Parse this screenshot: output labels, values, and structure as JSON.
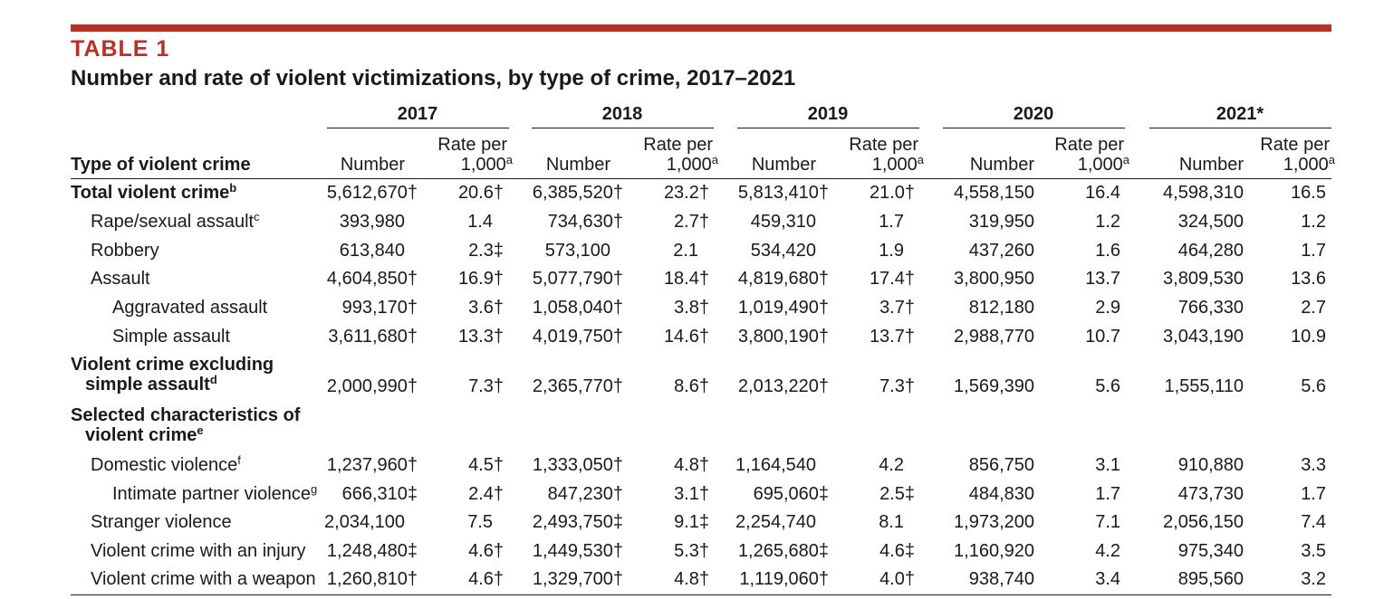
{
  "header": {
    "label": "TABLE 1",
    "title": "Number and rate of violent victimizations, by type of crime, 2017–2021"
  },
  "columns": {
    "type_header": "Type of violent crime",
    "number_label": "Number",
    "rate_label_line1": "Rate per",
    "rate_label_line2": "1,000",
    "rate_footnote": "a",
    "years": [
      "2017",
      "2018",
      "2019",
      "2020",
      "2021*"
    ]
  },
  "rows": [
    {
      "label": "Total violent crime",
      "note": "b",
      "bold": true,
      "values": [
        [
          "5,612,670†",
          "20.6†"
        ],
        [
          "6,385,520†",
          "23.2†"
        ],
        [
          "5,813,410†",
          "21.0†"
        ],
        [
          "4,558,150",
          "16.4"
        ],
        [
          "4,598,310",
          "16.5"
        ]
      ]
    },
    {
      "label": "Rape/sexual assault",
      "note": "c",
      "values": [
        [
          "393,980",
          "1.4"
        ],
        [
          "734,630†",
          "2.7†"
        ],
        [
          "459,310",
          "1.7"
        ],
        [
          "319,950",
          "1.2"
        ],
        [
          "324,500",
          "1.2"
        ]
      ]
    },
    {
      "label": "Robbery",
      "note": "",
      "values": [
        [
          "613,840",
          "2.3‡"
        ],
        [
          "573,100",
          "2.1"
        ],
        [
          "534,420",
          "1.9"
        ],
        [
          "437,260",
          "1.6"
        ],
        [
          "464,280",
          "1.7"
        ]
      ]
    },
    {
      "label": "Assault",
      "note": "",
      "values": [
        [
          "4,604,850†",
          "16.9†"
        ],
        [
          "5,077,790†",
          "18.4†"
        ],
        [
          "4,819,680†",
          "17.4†"
        ],
        [
          "3,800,950",
          "13.7"
        ],
        [
          "3,809,530",
          "13.6"
        ]
      ]
    },
    {
      "label": "Aggravated assault",
      "note": "",
      "values": [
        [
          "993,170†",
          "3.6†"
        ],
        [
          "1,058,040†",
          "3.8†"
        ],
        [
          "1,019,490†",
          "3.7†"
        ],
        [
          "812,180",
          "2.9"
        ],
        [
          "766,330",
          "2.7"
        ]
      ]
    },
    {
      "label": "Simple assault",
      "note": "",
      "values": [
        [
          "3,611,680†",
          "13.3†"
        ],
        [
          "4,019,750†",
          "14.6†"
        ],
        [
          "3,800,190†",
          "13.7†"
        ],
        [
          "2,988,770",
          "10.7"
        ],
        [
          "3,043,190",
          "10.9"
        ]
      ]
    },
    {
      "label": "Violent crime excluding",
      "label2": "simple assault",
      "note": "d",
      "bold": true,
      "values": [
        [
          "2,000,990†",
          "7.3†"
        ],
        [
          "2,365,770†",
          "8.6†"
        ],
        [
          "2,013,220†",
          "7.3†"
        ],
        [
          "1,569,390",
          "5.6"
        ],
        [
          "1,555,110",
          "5.6"
        ]
      ]
    },
    {
      "label": "Selected characteristics of",
      "label2": "violent crime",
      "note": "e",
      "bold": true,
      "values": []
    },
    {
      "label": "Domestic violence",
      "note": "f",
      "values": [
        [
          "1,237,960†",
          "4.5†"
        ],
        [
          "1,333,050†",
          "4.8†"
        ],
        [
          "1,164,540",
          "4.2"
        ],
        [
          "856,750",
          "3.1"
        ],
        [
          "910,880",
          "3.3"
        ]
      ]
    },
    {
      "label": "Intimate partner violence",
      "note": "g",
      "values": [
        [
          "666,310‡",
          "2.4†"
        ],
        [
          "847,230†",
          "3.1†"
        ],
        [
          "695,060‡",
          "2.5‡"
        ],
        [
          "484,830",
          "1.7"
        ],
        [
          "473,730",
          "1.7"
        ]
      ]
    },
    {
      "label": "Stranger violence",
      "note": "",
      "values": [
        [
          "2,034,100",
          "7.5"
        ],
        [
          "2,493,750‡",
          "9.1‡"
        ],
        [
          "2,254,740",
          "8.1"
        ],
        [
          "1,973,200",
          "7.1"
        ],
        [
          "2,056,150",
          "7.4"
        ]
      ]
    },
    {
      "label": "Violent crime with an injury",
      "note": "",
      "values": [
        [
          "1,248,480‡",
          "4.6†"
        ],
        [
          "1,449,530†",
          "5.3†"
        ],
        [
          "1,265,680‡",
          "4.6‡"
        ],
        [
          "1,160,920",
          "4.2"
        ],
        [
          "975,340",
          "3.5"
        ]
      ]
    },
    {
      "label": "Violent crime with a weapon",
      "note": "",
      "values": [
        [
          "1,260,810†",
          "4.6†"
        ],
        [
          "1,329,700†",
          "4.8†"
        ],
        [
          "1,119,060†",
          "4.0†"
        ],
        [
          "938,740",
          "3.4"
        ],
        [
          "895,560",
          "3.2"
        ]
      ]
    }
  ],
  "colors": {
    "accent": "#b3322a",
    "text": "#1a1a1a"
  }
}
